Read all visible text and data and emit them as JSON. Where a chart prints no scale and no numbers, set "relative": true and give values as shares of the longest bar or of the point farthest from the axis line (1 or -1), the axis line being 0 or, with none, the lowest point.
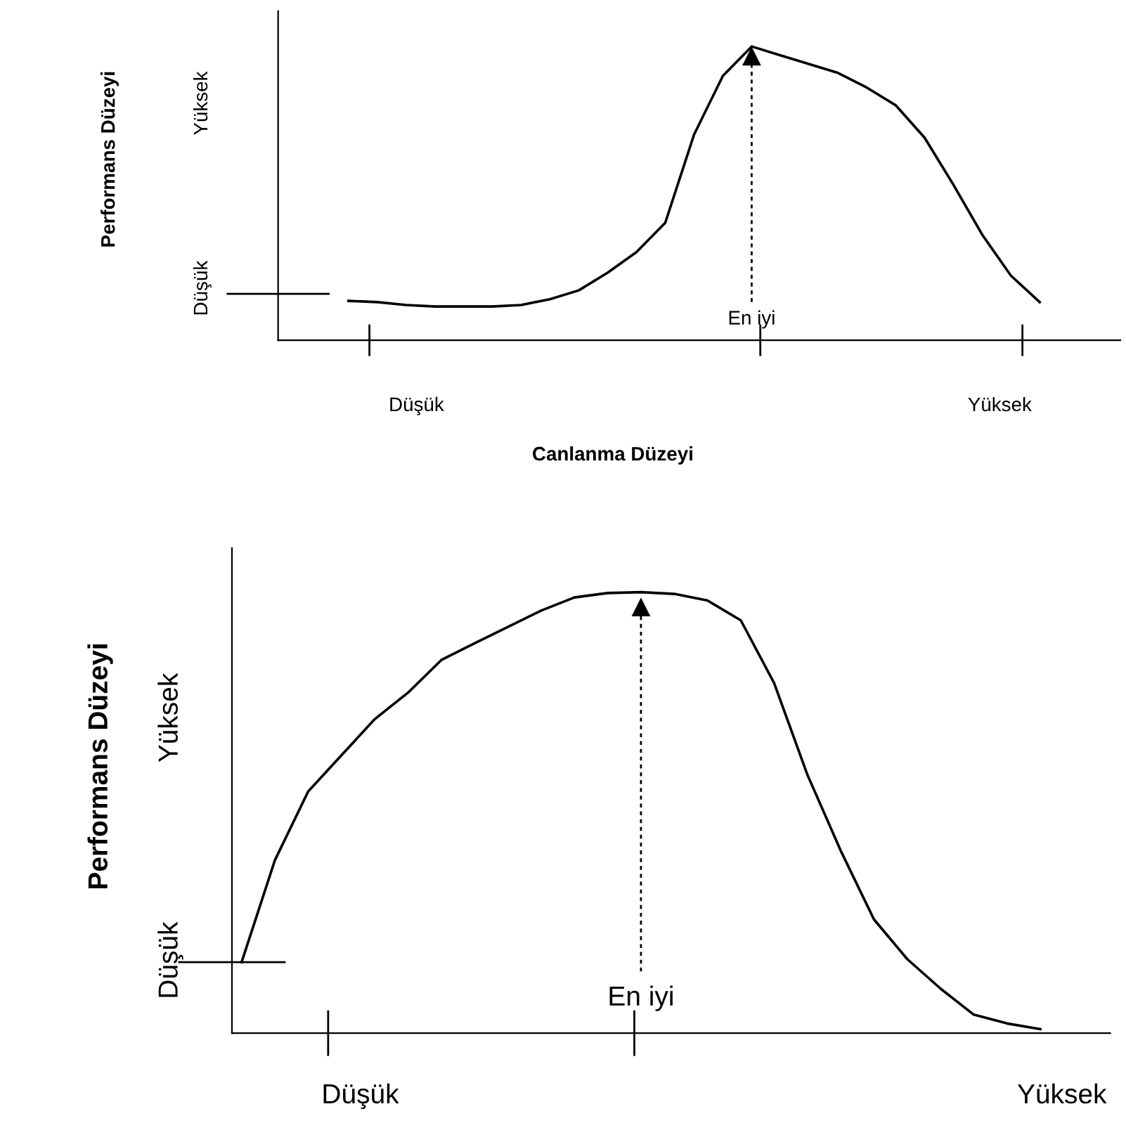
{
  "chart_data": [
    {
      "type": "line",
      "relative": true,
      "xlabel": "Canlanma Düzeyi",
      "ylabel": "Performans Düzeyi",
      "color": "#000000",
      "line_style": "solid",
      "marker": "none",
      "categories": [
        null,
        null,
        null,
        null,
        null,
        null,
        null,
        null,
        null,
        null,
        null,
        null,
        null,
        null,
        null,
        null,
        null,
        null,
        null,
        null,
        null,
        null,
        null,
        null,
        null
      ],
      "values": [
        0.134,
        0.13,
        0.12,
        0.115,
        0.115,
        0.115,
        0.12,
        0.14,
        0.17,
        0.23,
        0.3,
        0.4,
        0.7,
        0.9,
        1.0,
        0.97,
        0.94,
        0.91,
        0.86,
        0.8,
        0.69,
        0.53,
        0.36,
        0.22,
        0.13
      ],
      "annotations": [
        "Düşük",
        "Yüksek",
        "Düşük",
        "Yüksek",
        "En iyi"
      ]
    },
    {
      "type": "line",
      "relative": true,
      "ylabel": "Performans Düzeyi",
      "color": "#000000",
      "line_style": "solid",
      "marker": "none",
      "categories": [
        null,
        null,
        null,
        null,
        null,
        null,
        null,
        null,
        null,
        null,
        null,
        null,
        null,
        null,
        null,
        null,
        null,
        null,
        null,
        null,
        null,
        null,
        null,
        null,
        null
      ],
      "values": [
        0.161,
        0.392,
        0.548,
        0.63,
        0.712,
        0.772,
        0.846,
        0.884,
        0.921,
        0.958,
        0.988,
        0.998,
        1.0,
        0.996,
        0.981,
        0.936,
        0.794,
        0.586,
        0.414,
        0.258,
        0.168,
        0.101,
        0.042,
        0.022,
        0.009
      ],
      "annotations": [
        "Düşük",
        "Yüksek",
        "Düşük",
        "Yüksek",
        "En iyi"
      ]
    }
  ]
}
